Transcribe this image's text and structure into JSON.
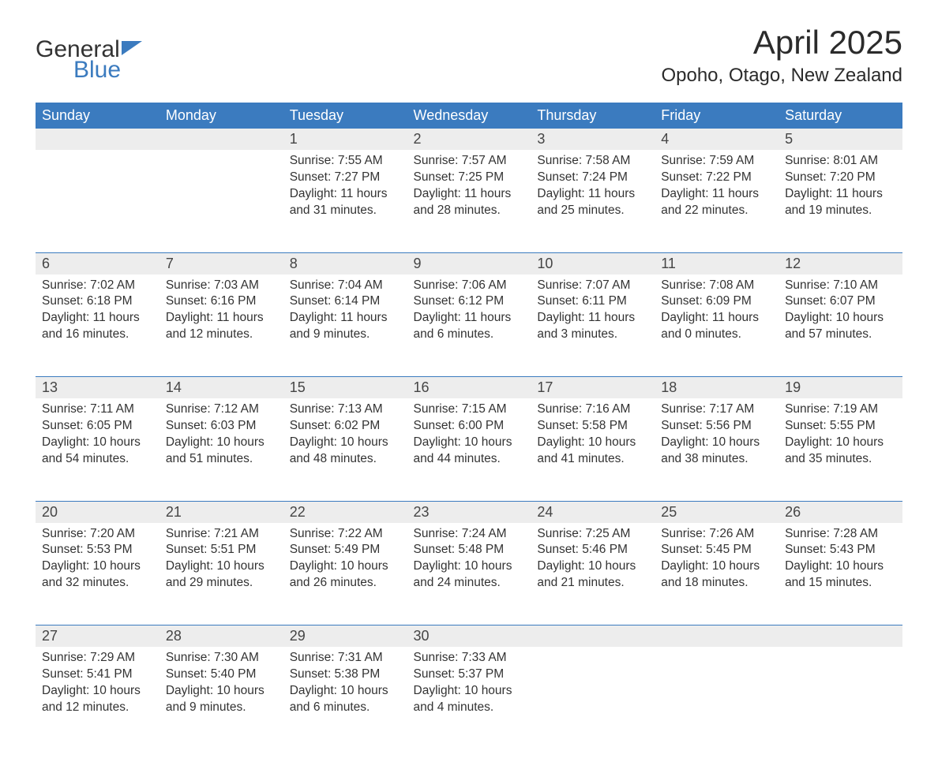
{
  "brand": {
    "top": "General",
    "bottom": "Blue"
  },
  "title": "April 2025",
  "location": "Opoho, Otago, New Zealand",
  "colors": {
    "header_bg": "#3b7bbf",
    "header_text": "#ffffff",
    "daynum_bg": "#ededed",
    "week_border": "#3b7bbf",
    "body_text": "#333333",
    "page_bg": "#ffffff"
  },
  "day_labels": [
    "Sunday",
    "Monday",
    "Tuesday",
    "Wednesday",
    "Thursday",
    "Friday",
    "Saturday"
  ],
  "weeks": [
    [
      null,
      null,
      {
        "n": "1",
        "sunrise": "7:55 AM",
        "sunset": "7:27 PM",
        "daylight": "11 hours and 31 minutes."
      },
      {
        "n": "2",
        "sunrise": "7:57 AM",
        "sunset": "7:25 PM",
        "daylight": "11 hours and 28 minutes."
      },
      {
        "n": "3",
        "sunrise": "7:58 AM",
        "sunset": "7:24 PM",
        "daylight": "11 hours and 25 minutes."
      },
      {
        "n": "4",
        "sunrise": "7:59 AM",
        "sunset": "7:22 PM",
        "daylight": "11 hours and 22 minutes."
      },
      {
        "n": "5",
        "sunrise": "8:01 AM",
        "sunset": "7:20 PM",
        "daylight": "11 hours and 19 minutes."
      }
    ],
    [
      {
        "n": "6",
        "sunrise": "7:02 AM",
        "sunset": "6:18 PM",
        "daylight": "11 hours and 16 minutes."
      },
      {
        "n": "7",
        "sunrise": "7:03 AM",
        "sunset": "6:16 PM",
        "daylight": "11 hours and 12 minutes."
      },
      {
        "n": "8",
        "sunrise": "7:04 AM",
        "sunset": "6:14 PM",
        "daylight": "11 hours and 9 minutes."
      },
      {
        "n": "9",
        "sunrise": "7:06 AM",
        "sunset": "6:12 PM",
        "daylight": "11 hours and 6 minutes."
      },
      {
        "n": "10",
        "sunrise": "7:07 AM",
        "sunset": "6:11 PM",
        "daylight": "11 hours and 3 minutes."
      },
      {
        "n": "11",
        "sunrise": "7:08 AM",
        "sunset": "6:09 PM",
        "daylight": "11 hours and 0 minutes."
      },
      {
        "n": "12",
        "sunrise": "7:10 AM",
        "sunset": "6:07 PM",
        "daylight": "10 hours and 57 minutes."
      }
    ],
    [
      {
        "n": "13",
        "sunrise": "7:11 AM",
        "sunset": "6:05 PM",
        "daylight": "10 hours and 54 minutes."
      },
      {
        "n": "14",
        "sunrise": "7:12 AM",
        "sunset": "6:03 PM",
        "daylight": "10 hours and 51 minutes."
      },
      {
        "n": "15",
        "sunrise": "7:13 AM",
        "sunset": "6:02 PM",
        "daylight": "10 hours and 48 minutes."
      },
      {
        "n": "16",
        "sunrise": "7:15 AM",
        "sunset": "6:00 PM",
        "daylight": "10 hours and 44 minutes."
      },
      {
        "n": "17",
        "sunrise": "7:16 AM",
        "sunset": "5:58 PM",
        "daylight": "10 hours and 41 minutes."
      },
      {
        "n": "18",
        "sunrise": "7:17 AM",
        "sunset": "5:56 PM",
        "daylight": "10 hours and 38 minutes."
      },
      {
        "n": "19",
        "sunrise": "7:19 AM",
        "sunset": "5:55 PM",
        "daylight": "10 hours and 35 minutes."
      }
    ],
    [
      {
        "n": "20",
        "sunrise": "7:20 AM",
        "sunset": "5:53 PM",
        "daylight": "10 hours and 32 minutes."
      },
      {
        "n": "21",
        "sunrise": "7:21 AM",
        "sunset": "5:51 PM",
        "daylight": "10 hours and 29 minutes."
      },
      {
        "n": "22",
        "sunrise": "7:22 AM",
        "sunset": "5:49 PM",
        "daylight": "10 hours and 26 minutes."
      },
      {
        "n": "23",
        "sunrise": "7:24 AM",
        "sunset": "5:48 PM",
        "daylight": "10 hours and 24 minutes."
      },
      {
        "n": "24",
        "sunrise": "7:25 AM",
        "sunset": "5:46 PM",
        "daylight": "10 hours and 21 minutes."
      },
      {
        "n": "25",
        "sunrise": "7:26 AM",
        "sunset": "5:45 PM",
        "daylight": "10 hours and 18 minutes."
      },
      {
        "n": "26",
        "sunrise": "7:28 AM",
        "sunset": "5:43 PM",
        "daylight": "10 hours and 15 minutes."
      }
    ],
    [
      {
        "n": "27",
        "sunrise": "7:29 AM",
        "sunset": "5:41 PM",
        "daylight": "10 hours and 12 minutes."
      },
      {
        "n": "28",
        "sunrise": "7:30 AM",
        "sunset": "5:40 PM",
        "daylight": "10 hours and 9 minutes."
      },
      {
        "n": "29",
        "sunrise": "7:31 AM",
        "sunset": "5:38 PM",
        "daylight": "10 hours and 6 minutes."
      },
      {
        "n": "30",
        "sunrise": "7:33 AM",
        "sunset": "5:37 PM",
        "daylight": "10 hours and 4 minutes."
      },
      null,
      null,
      null
    ]
  ],
  "labels": {
    "sunrise": "Sunrise: ",
    "sunset": "Sunset: ",
    "daylight": "Daylight: "
  }
}
